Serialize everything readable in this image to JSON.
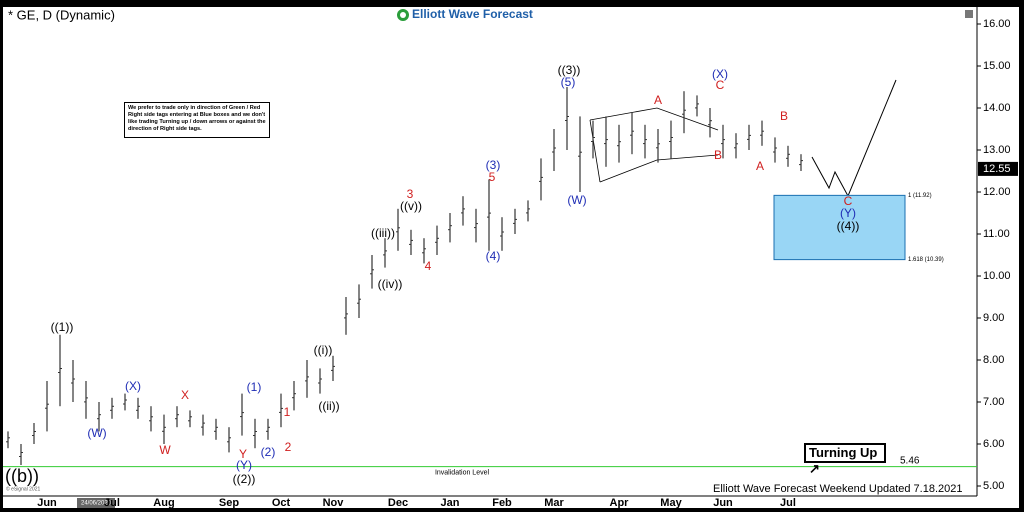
{
  "chart_data": {
    "type": "range-bar",
    "title": "* GE, D (Dynamic)",
    "brand": "Elliott Wave Forecast",
    "footer": "Elliott Wave Forecast Weekend Updated 7.18.2021",
    "copyright": "© eSignal 2021",
    "cursor_date": "24/06/2020",
    "note": "We prefer to trade only in direction of Green / Red Right side tags entering at Blue boxes and we don't like trading Turning up / down arrows or against the direction of Right side tags.",
    "signal": "Turning Up",
    "color": "#333333",
    "categories": [
      null,
      null,
      null,
      "Jun",
      null,
      null,
      null,
      null,
      "Jul",
      null,
      null,
      null,
      "Aug",
      null,
      null,
      null,
      null,
      "Sep",
      null,
      null,
      null,
      "Oct",
      null,
      null,
      null,
      "Nov",
      null,
      null,
      null,
      null,
      "Dec",
      null,
      null,
      null,
      "Jan",
      null,
      null,
      null,
      "Feb",
      null,
      null,
      null,
      "Mar",
      null,
      null,
      null,
      null,
      "Apr",
      null,
      null,
      null,
      "May",
      null,
      null,
      null,
      "Jun",
      null,
      null,
      null,
      null,
      "Jul",
      null
    ],
    "low": [
      5.9,
      5.5,
      6.0,
      6.3,
      6.9,
      7.0,
      6.6,
      6.3,
      6.6,
      6.8,
      6.6,
      6.3,
      6.0,
      6.4,
      6.4,
      6.2,
      6.1,
      5.8,
      6.2,
      5.9,
      6.1,
      6.4,
      6.8,
      7.1,
      7.2,
      7.5,
      8.6,
      9.0,
      9.7,
      10.2,
      10.6,
      10.5,
      10.3,
      10.5,
      10.8,
      11.2,
      10.8,
      10.6,
      10.6,
      11.0,
      11.3,
      11.8,
      12.5,
      13.0,
      12.0,
      12.8,
      12.6,
      12.7,
      12.9,
      12.8,
      12.7,
      12.8,
      13.4,
      13.8,
      13.3,
      12.8,
      12.8,
      13.0,
      13.1,
      12.7,
      12.6,
      12.5
    ],
    "high": [
      6.3,
      6.0,
      6.5,
      7.5,
      8.6,
      8.0,
      7.5,
      7.0,
      7.1,
      7.2,
      7.1,
      6.9,
      6.7,
      6.9,
      6.8,
      6.7,
      6.6,
      6.4,
      7.2,
      6.6,
      6.6,
      7.2,
      7.5,
      8.0,
      7.8,
      8.1,
      9.5,
      9.8,
      10.5,
      10.9,
      11.6,
      11.1,
      10.9,
      11.2,
      11.5,
      11.9,
      11.6,
      12.3,
      11.4,
      11.6,
      11.8,
      12.8,
      13.5,
      14.5,
      13.8,
      13.7,
      13.8,
      13.6,
      13.9,
      13.6,
      13.5,
      13.7,
      14.4,
      14.3,
      14.0,
      13.6,
      13.4,
      13.6,
      13.7,
      13.3,
      13.1,
      12.9
    ],
    "ylim": [
      5,
      16
    ],
    "yticks": [
      {
        "value": 5,
        "label": "5.00"
      },
      {
        "value": 6,
        "label": "6.00"
      },
      {
        "value": 7,
        "label": "7.00"
      },
      {
        "value": 8,
        "label": "8.00"
      },
      {
        "value": 9,
        "label": "9.00"
      },
      {
        "value": 10,
        "label": "10.00"
      },
      {
        "value": 11,
        "label": "11.00"
      },
      {
        "value": 12,
        "label": "12.00"
      },
      {
        "value": 13,
        "label": "13.00"
      },
      {
        "value": 14,
        "label": "14.00"
      },
      {
        "value": 15,
        "label": "15.00"
      },
      {
        "value": 16,
        "label": "16.00"
      }
    ],
    "last_price": 12.55,
    "invalidation": {
      "label": "Invalidation Level",
      "value": 5.46,
      "color": "#33cc33"
    },
    "target_box": {
      "from": 11.92,
      "to": 10.39,
      "from_label": "1 (11.92)",
      "to_label": "1.618 (10.39)",
      "color": "#99d6f5"
    },
    "annotations": [
      {
        "text": "((b))",
        "color": "#000000"
      },
      {
        "text": "((1))",
        "color": "#000000"
      },
      {
        "text": "(W)",
        "color": "#1f2db5"
      },
      {
        "text": "(X)",
        "color": "#1f2db5"
      },
      {
        "text": "W",
        "color": "#d01f1f"
      },
      {
        "text": "X",
        "color": "#d01f1f"
      },
      {
        "text": "Y",
        "color": "#d01f1f"
      },
      {
        "text": "(Y)",
        "color": "#1f2db5"
      },
      {
        "text": "((2))",
        "color": "#000000"
      },
      {
        "text": "(1)",
        "color": "#1f2db5"
      },
      {
        "text": "(2)",
        "color": "#1f2db5"
      },
      {
        "text": "1",
        "color": "#d01f1f"
      },
      {
        "text": "2",
        "color": "#d01f1f"
      },
      {
        "text": "((i))",
        "color": "#000000"
      },
      {
        "text": "((ii))",
        "color": "#000000"
      },
      {
        "text": "((iii))",
        "color": "#000000"
      },
      {
        "text": "((iv))",
        "color": "#000000"
      },
      {
        "text": "((v))",
        "color": "#000000"
      },
      {
        "text": "3",
        "color": "#d01f1f"
      },
      {
        "text": "4",
        "color": "#d01f1f"
      },
      {
        "text": "(3)",
        "color": "#1f2db5"
      },
      {
        "text": "5",
        "color": "#d01f1f"
      },
      {
        "text": "(4)",
        "color": "#1f2db5"
      },
      {
        "text": "((3))",
        "color": "#000000"
      },
      {
        "text": "(5)",
        "color": "#1f2db5"
      },
      {
        "text": "(W)",
        "color": "#1f2db5"
      },
      {
        "text": "A",
        "color": "#d01f1f"
      },
      {
        "text": "B",
        "color": "#d01f1f"
      },
      {
        "text": "(X)",
        "color": "#1f2db5"
      },
      {
        "text": "C",
        "color": "#d01f1f"
      },
      {
        "text": "A",
        "color": "#d01f1f"
      },
      {
        "text": "B",
        "color": "#d01f1f"
      },
      {
        "text": "C",
        "color": "#d01f1f"
      },
      {
        "text": "(Y)",
        "color": "#1f2db5"
      },
      {
        "text": "((4))",
        "color": "#000000"
      }
    ]
  }
}
